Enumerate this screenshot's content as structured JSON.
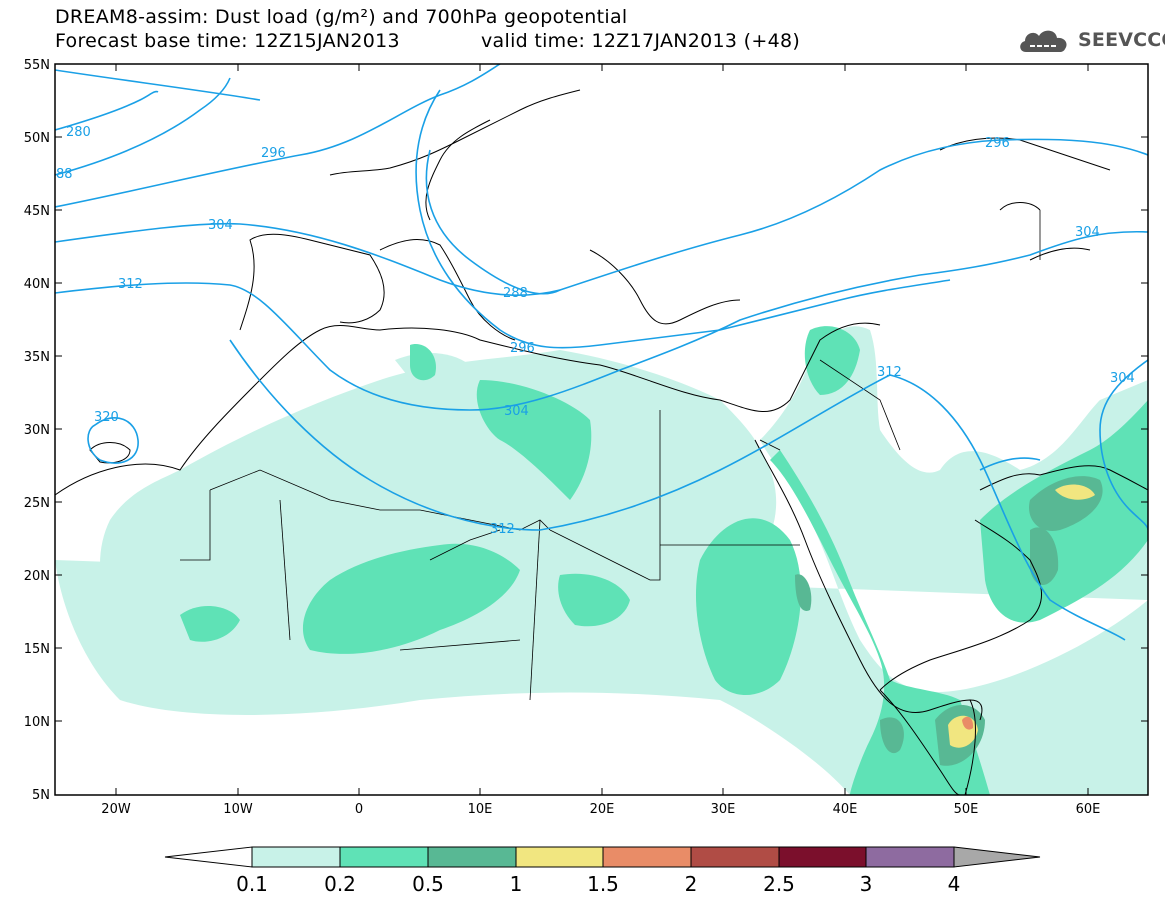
{
  "title": {
    "line1": "DREAM8-assim: Dust load (g/m²) and 700hPa geopotential",
    "base_time": "Forecast base time: 12Z15JAN2013",
    "valid_time": "valid time: 12Z17JAN2013 (+48)"
  },
  "logo": {
    "text": "SEEVCCC",
    "icon": "cloud-icon"
  },
  "map": {
    "lat_labels": [
      "55N",
      "50N",
      "45N",
      "40N",
      "35N",
      "30N",
      "25N",
      "20N",
      "15N",
      "10N",
      "5N"
    ],
    "lon_labels": [
      "20W",
      "10W",
      "0",
      "10E",
      "20E",
      "30E",
      "40E",
      "50E",
      "60E"
    ],
    "contour_labels": [
      "280",
      "88",
      "296",
      "304",
      "312",
      "320",
      "288",
      "296",
      "304",
      "312",
      "304",
      "296",
      "304",
      "312"
    ]
  },
  "colors": {
    "contour": "#1aa0e6",
    "level_01": "#c8f2e8",
    "level_02": "#5fe2b6",
    "level_05": "#58b894",
    "level_1": "#f1e680",
    "level_15": "#e98c67",
    "level_2": "#b04c45",
    "level_25": "#7b0f2c",
    "level_3": "#8e6ba0",
    "level_4": "#a8a8a8"
  },
  "colorbar": {
    "labels": [
      "0.1",
      "0.2",
      "0.5",
      "1",
      "1.5",
      "2",
      "2.5",
      "3",
      "4"
    ]
  }
}
